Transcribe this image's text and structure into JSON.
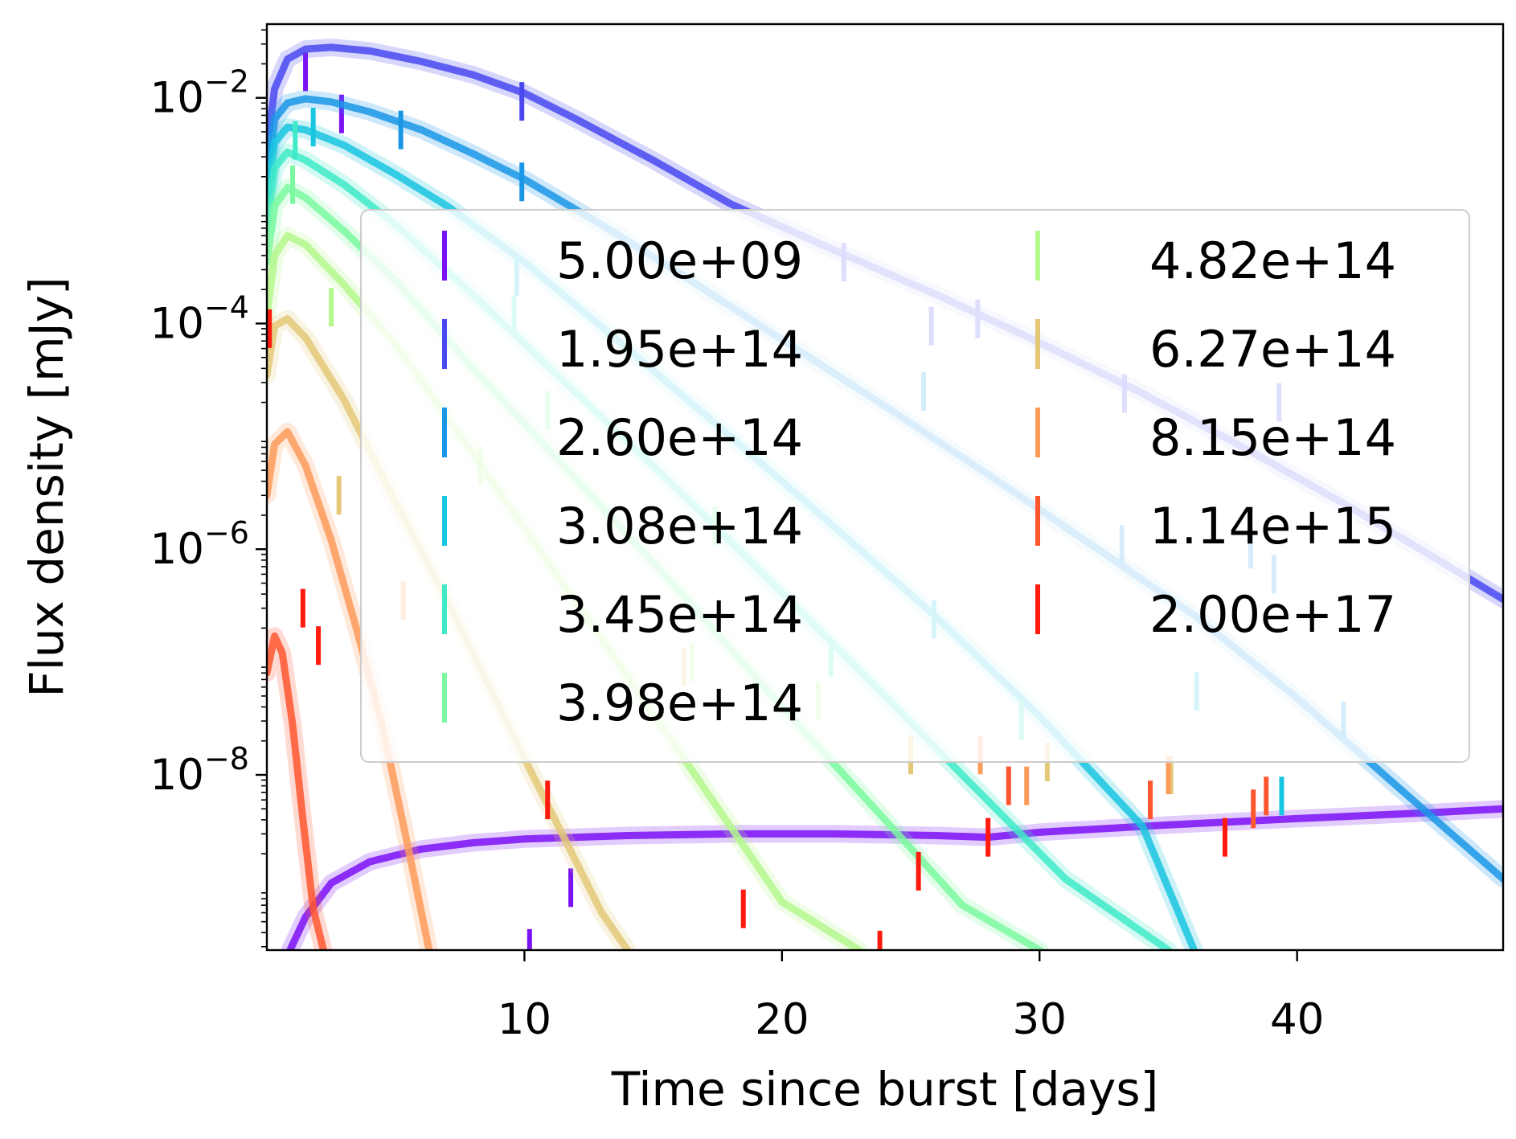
{
  "chart_data": {
    "type": "line",
    "xlabel": "Time since burst [days]",
    "ylabel": "Flux density [mJy]",
    "xlim": [
      0,
      48
    ],
    "ylim": [
      2.8e-10,
      0.045
    ],
    "yscale": "log",
    "x_ticks": [
      10,
      20,
      30,
      40
    ],
    "x_tick_labels": [
      "10",
      "20",
      "30",
      "40"
    ],
    "y_ticks": [
      1e-08,
      1e-06,
      0.0001,
      0.01
    ],
    "y_tick_labels": [
      {
        "base": "10",
        "exp": "−8"
      },
      {
        "base": "10",
        "exp": "−6"
      },
      {
        "base": "10",
        "exp": "−4"
      },
      {
        "base": "10",
        "exp": "−2"
      }
    ],
    "grid": false,
    "legend_position": "center",
    "legend_columns": 2,
    "series": [
      {
        "name": "5.00e+09",
        "color": "#7b12f5",
        "model_x": [
          0.9,
          1.5,
          2.5,
          4,
          6,
          8,
          10,
          14,
          18,
          22,
          26,
          28,
          30,
          35,
          40,
          45,
          48
        ],
        "model_y": [
          2.8e-10,
          5.5e-10,
          1.1e-09,
          1.7e-09,
          2.2e-09,
          2.5e-09,
          2.7e-09,
          2.9e-09,
          3e-09,
          3e-09,
          2.9e-09,
          2.8e-09,
          3.1e-09,
          3.6e-09,
          4.1e-09,
          4.6e-09,
          5e-09
        ],
        "points": [
          {
            "x": 1.5,
            "y": 0.017
          },
          {
            "x": 2.9,
            "y": 0.0072
          },
          {
            "x": 10.2,
            "y": 2.9e-10
          },
          {
            "x": 11.8,
            "y": 1e-09
          }
        ]
      },
      {
        "name": "1.95e+14",
        "color": "#4a49f0",
        "model_x": [
          0,
          0.3,
          0.8,
          1.5,
          2.5,
          4,
          6,
          8,
          10,
          12,
          15,
          18,
          22,
          26,
          30,
          34,
          38,
          42,
          46,
          48
        ],
        "model_y": [
          0.0035,
          0.012,
          0.022,
          0.027,
          0.028,
          0.026,
          0.021,
          0.016,
          0.011,
          0.0065,
          0.0028,
          0.00115,
          0.00045,
          0.00018,
          6.8e-05,
          2.4e-05,
          7.8e-06,
          2.4e-06,
          6.8e-07,
          3.6e-07
        ],
        "points": [
          {
            "x": 9.9,
            "y": 0.0093
          },
          {
            "x": 22.4,
            "y": 0.00035
          },
          {
            "x": 25.8,
            "y": 9.5e-05
          },
          {
            "x": 27.6,
            "y": 0.00011
          },
          {
            "x": 33.3,
            "y": 2.4e-05
          },
          {
            "x": 39.3,
            "y": 2e-05
          }
        ]
      },
      {
        "name": "2.60e+14",
        "color": "#1a96e6",
        "model_x": [
          0,
          0.3,
          0.8,
          1.5,
          2.5,
          4,
          6,
          8,
          10,
          13,
          16,
          20,
          24,
          28,
          32,
          36,
          40,
          44,
          48
        ],
        "model_y": [
          0.002,
          0.0065,
          0.009,
          0.0098,
          0.0092,
          0.0075,
          0.0052,
          0.0032,
          0.0019,
          0.00075,
          0.00028,
          7.2e-05,
          1.85e-05,
          4.6e-06,
          1.1e-06,
          2.6e-07,
          4.8e-08,
          7.5e-09,
          1.2e-09
        ],
        "points": [
          {
            "x": 5.2,
            "y": 0.0052
          },
          {
            "x": 9.9,
            "y": 0.0018
          },
          {
            "x": 25.5,
            "y": 2.5e-05
          },
          {
            "x": 33.2,
            "y": 1.1e-06
          },
          {
            "x": 38.2,
            "y": 1e-06
          },
          {
            "x": 39.1,
            "y": 6e-07
          },
          {
            "x": 41.8,
            "y": 3e-08
          }
        ]
      },
      {
        "name": "3.08e+14",
        "color": "#18c6e1",
        "model_x": [
          0,
          0.3,
          0.8,
          1.5,
          3,
          5,
          7,
          10,
          14,
          18,
          22,
          26,
          30,
          34,
          36
        ],
        "model_y": [
          0.0012,
          0.004,
          0.0055,
          0.0052,
          0.0038,
          0.0021,
          0.0011,
          0.00035,
          6e-05,
          1e-05,
          1.6e-06,
          2.5e-07,
          3.3e-08,
          3.5e-09,
          2.8e-10
        ],
        "points": [
          {
            "x": 1.8,
            "y": 0.0055
          },
          {
            "x": 9.7,
            "y": 0.00026
          },
          {
            "x": 25.9,
            "y": 2.4e-07
          },
          {
            "x": 36.1,
            "y": 5.5e-08
          },
          {
            "x": 39.4,
            "y": 6.5e-09
          }
        ]
      },
      {
        "name": "3.45e+14",
        "color": "#40eac8",
        "model_x": [
          0,
          0.3,
          0.8,
          1.5,
          3,
          5,
          8,
          11,
          15,
          19,
          23,
          27,
          31,
          35
        ],
        "model_y": [
          0.0007,
          0.0024,
          0.0033,
          0.0028,
          0.0017,
          0.00075,
          0.00018,
          4e-05,
          5.5e-06,
          7e-07,
          8.5e-08,
          1e-08,
          1.2e-09,
          2.8e-10
        ],
        "points": [
          {
            "x": 1.1,
            "y": 0.0042
          },
          {
            "x": 9.6,
            "y": 0.00012
          },
          {
            "x": 21.9,
            "y": 1.1e-07
          },
          {
            "x": 29.3,
            "y": 3e-08
          }
        ]
      },
      {
        "name": "3.98e+14",
        "color": "#7cf9a0",
        "model_x": [
          0,
          0.3,
          0.8,
          1.5,
          3,
          5,
          8,
          12,
          16,
          20,
          24,
          27,
          30
        ],
        "model_y": [
          0.00035,
          0.0011,
          0.0016,
          0.0013,
          0.00066,
          0.00024,
          4e-05,
          4.2e-06,
          4.3e-07,
          4e-08,
          4e-09,
          7e-10,
          2.8e-10
        ],
        "points": [
          {
            "x": 1.0,
            "y": 0.0017
          },
          {
            "x": 10.9,
            "y": 1.7e-05
          },
          {
            "x": 17.4,
            "y": 1.6e-06
          }
        ]
      },
      {
        "name": "4.82e+14",
        "color": "#b4f78c",
        "model_x": [
          0,
          0.3,
          0.8,
          1.5,
          3,
          5,
          8,
          11,
          14,
          17,
          20,
          23
        ],
        "model_y": [
          0.00012,
          0.0004,
          0.0006,
          0.0005,
          0.00022,
          6.5e-05,
          7e-06,
          7.2e-07,
          7.5e-08,
          7.5e-09,
          7.5e-10,
          2.8e-10
        ],
        "points": [
          {
            "x": 2.5,
            "y": 0.00014
          },
          {
            "x": 8.3,
            "y": 5.5e-06
          },
          {
            "x": 16.5,
            "y": 1e-07
          },
          {
            "x": 21.4,
            "y": 4.5e-08
          }
        ]
      },
      {
        "name": "6.27e+14",
        "color": "#e4c878",
        "model_x": [
          0,
          0.3,
          0.8,
          1.5,
          3,
          5,
          7,
          10,
          13,
          14
        ],
        "model_y": [
          3.5e-05,
          9.5e-05,
          0.00011,
          7.5e-05,
          2.1e-05,
          2.6e-06,
          3.5e-07,
          1.4e-08,
          6e-10,
          2.8e-10
        ],
        "points": [
          {
            "x": 2.8,
            "y": 3e-06
          },
          {
            "x": 16.2,
            "y": 9e-08
          },
          {
            "x": 25.0,
            "y": 1.5e-08
          },
          {
            "x": 30.3,
            "y": 1.3e-08
          },
          {
            "x": 35.1,
            "y": 1e-08
          }
        ]
      },
      {
        "name": "8.15e+14",
        "color": "#fd9b5a",
        "model_x": [
          0,
          0.3,
          0.8,
          1.5,
          2.5,
          3.5,
          4.5,
          5.5,
          6.3
        ],
        "model_y": [
          3e-06,
          8.5e-06,
          1.1e-05,
          5.5e-06,
          1.2e-06,
          1.9e-07,
          2.6e-08,
          2.2e-09,
          2.8e-10
        ],
        "points": [
          {
            "x": 5.3,
            "y": 3.5e-07
          },
          {
            "x": 27.7,
            "y": 1.5e-08
          },
          {
            "x": 29.5,
            "y": 8e-09
          },
          {
            "x": 35.0,
            "y": 1e-08
          }
        ]
      },
      {
        "name": "1.14e+15",
        "color": "#ff5630",
        "model_x": [
          0,
          0.3,
          0.6,
          1.0,
          1.4,
          1.8,
          2.2
        ],
        "model_y": [
          8e-08,
          1.7e-07,
          1.2e-07,
          2.8e-08,
          4e-09,
          6.5e-10,
          2.8e-10
        ],
        "points": [
          {
            "x": 28.8,
            "y": 8e-09
          },
          {
            "x": 34.3,
            "y": 6e-09
          },
          {
            "x": 38.3,
            "y": 5e-09
          },
          {
            "x": 38.8,
            "y": 6.5e-09
          }
        ]
      },
      {
        "name": "2.00e+17",
        "color": "#ff1a0d",
        "model_x": [],
        "model_y": [],
        "points": [
          {
            "x": 0.1,
            "y": 9e-05
          },
          {
            "x": 1.4,
            "y": 3e-07
          },
          {
            "x": 2.0,
            "y": 1.4e-07
          },
          {
            "x": 10.9,
            "y": 6e-09
          },
          {
            "x": 18.5,
            "y": 6.5e-10
          },
          {
            "x": 23.8,
            "y": 2.8e-10
          },
          {
            "x": 25.3,
            "y": 1.4e-09
          },
          {
            "x": 28.0,
            "y": 2.8e-09
          },
          {
            "x": 37.2,
            "y": 2.8e-09
          }
        ]
      }
    ]
  }
}
